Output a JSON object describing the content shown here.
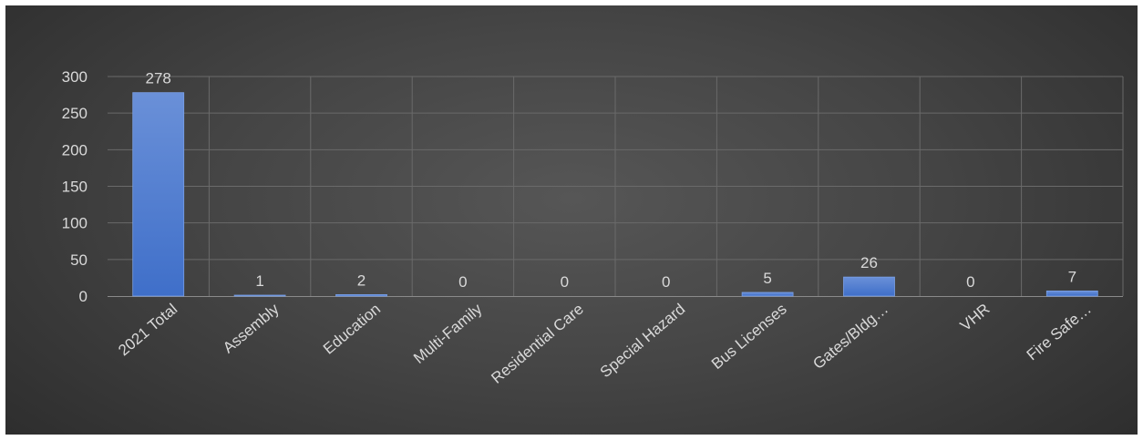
{
  "chart_data": {
    "type": "bar",
    "title": "",
    "xlabel": "",
    "ylabel": "",
    "categories": [
      "2021 Total",
      "Assembly",
      "Education",
      "Multi-Family",
      "Residential Care",
      "Special Hazard",
      "Bus Licenses",
      "Gates/Bldg…",
      "VHR",
      "Fire Safe…"
    ],
    "values": [
      278,
      1,
      2,
      0,
      0,
      0,
      5,
      26,
      0,
      7
    ],
    "data_labels": [
      "278",
      "1",
      "2",
      "0",
      "0",
      "0",
      "5",
      "26",
      "0",
      "7"
    ],
    "ylim": [
      0,
      300
    ],
    "yticks": [
      0,
      50,
      100,
      150,
      200,
      250,
      300
    ],
    "ytick_labels": [
      "0",
      "50",
      "100",
      "150",
      "200",
      "250",
      "300"
    ],
    "grid": true,
    "legend": "none",
    "bar_color": "#4f7fd4",
    "background_color": "#454545"
  }
}
